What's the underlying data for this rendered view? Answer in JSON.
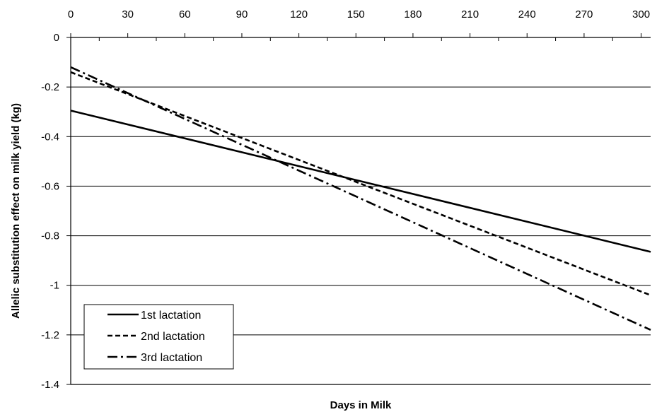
{
  "chart_data": {
    "type": "line",
    "title": "",
    "xlabel": "Days in Milk",
    "ylabel": "Allelic substitution  effect on milk yield (kg)",
    "xlim": [
      0,
      305
    ],
    "ylim": [
      -1.4,
      0
    ],
    "xticks": [
      0,
      30,
      60,
      90,
      120,
      150,
      180,
      210,
      240,
      270,
      300
    ],
    "xtick_labels": [
      "0",
      "30",
      "60",
      "90",
      "120",
      "150",
      "180",
      "210",
      "240",
      "270",
      "300"
    ],
    "yticks": [
      0,
      -0.2,
      -0.4,
      -0.6,
      -0.8,
      -1,
      -1.2,
      -1.4
    ],
    "ytick_labels": [
      "0",
      "-0.2",
      "-0.4",
      "-0.6",
      "-0.8",
      "-1",
      "-1.2",
      "-1.4"
    ],
    "grid": "horizontal",
    "legend_position": "bottom-left",
    "series": [
      {
        "name": "1st lactation",
        "style": "solid",
        "x": [
          0,
          305
        ],
        "y": [
          -0.295,
          -0.865
        ]
      },
      {
        "name": "2nd lactation",
        "style": "dashed",
        "x": [
          0,
          305
        ],
        "y": [
          -0.14,
          -1.04
        ]
      },
      {
        "name": "3rd lactation",
        "style": "dashdot",
        "x": [
          0,
          305
        ],
        "y": [
          -0.12,
          -1.18
        ]
      }
    ]
  }
}
